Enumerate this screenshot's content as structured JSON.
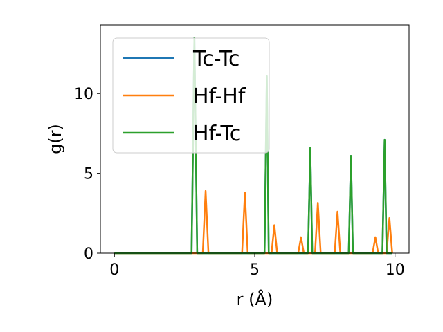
{
  "chart_data": {
    "type": "line",
    "title": "",
    "xlabel": "r (Å)",
    "ylabel": "g(r)",
    "xlim": [
      -0.5,
      10.5
    ],
    "ylim": [
      0,
      14.3
    ],
    "xticks": [
      0,
      5,
      10
    ],
    "yticks": [
      0,
      5,
      10
    ],
    "grid": false,
    "legend_position": "top-left",
    "series": [
      {
        "name": "Tc-Tc",
        "color": "#1f77b4",
        "x": [
          0,
          2.75,
          2.85,
          2.95,
          5.35,
          5.43,
          5.5,
          6.9,
          6.98,
          7.05,
          8.35,
          8.43,
          8.5,
          9.55,
          9.63,
          9.7,
          9.9
        ],
        "y": [
          0,
          0,
          13.5,
          0,
          0,
          11.1,
          0,
          0,
          6.6,
          0,
          0,
          6.1,
          0,
          0,
          7.1,
          0,
          0
        ]
      },
      {
        "name": "Hf-Hf",
        "color": "#ff7f0e",
        "x": [
          0,
          3.15,
          3.25,
          3.35,
          4.55,
          4.65,
          4.75,
          5.6,
          5.7,
          5.8,
          6.55,
          6.65,
          6.75,
          7.15,
          7.25,
          7.35,
          7.85,
          7.95,
          8.05,
          9.2,
          9.3,
          9.4,
          9.7,
          9.8,
          9.9
        ],
        "y": [
          0,
          0,
          3.9,
          0,
          0,
          3.8,
          0,
          0,
          1.75,
          0,
          0,
          1.0,
          0,
          0,
          3.15,
          0,
          0,
          2.6,
          0,
          0,
          1.0,
          0,
          0,
          2.2,
          0
        ]
      },
      {
        "name": "Hf-Tc",
        "color": "#2ca02c",
        "x": [
          0,
          2.75,
          2.85,
          2.95,
          5.35,
          5.43,
          5.5,
          6.9,
          6.98,
          7.05,
          8.35,
          8.43,
          8.5,
          9.55,
          9.63,
          9.7,
          9.9
        ],
        "y": [
          0,
          0,
          13.5,
          0,
          0,
          11.1,
          0,
          0,
          6.6,
          0,
          0,
          6.1,
          0,
          0,
          7.1,
          0,
          0
        ]
      }
    ]
  }
}
